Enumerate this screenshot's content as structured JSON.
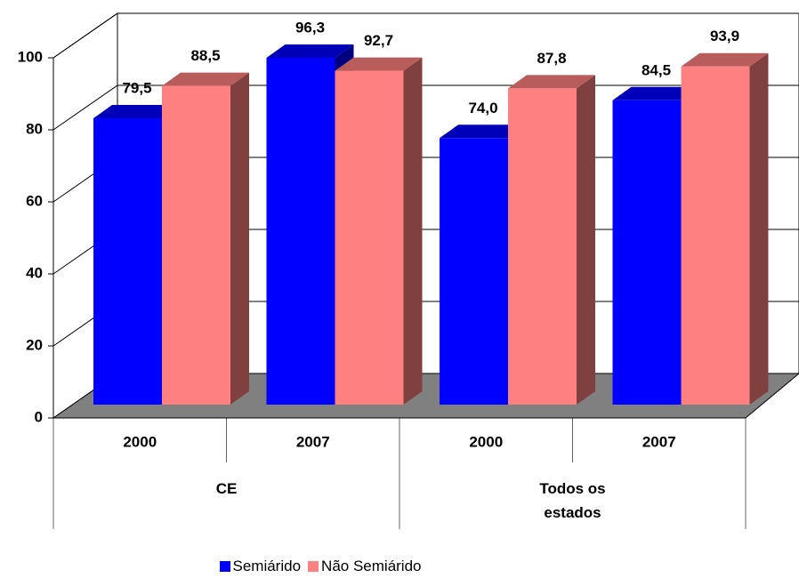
{
  "chart_data": {
    "type": "bar3d",
    "categories": [
      "2000",
      "2007",
      "2000",
      "2007"
    ],
    "groups": [
      "CE",
      "Todos os estados"
    ],
    "series": [
      {
        "name": "Semiárido",
        "color": "#0000ff",
        "values": [
          79.5,
          96.3,
          74.0,
          84.5
        ],
        "value_labels": [
          "79,5",
          "96,3",
          "74,0",
          "84,5"
        ]
      },
      {
        "name": "Não Semiárido",
        "color": "#ff8080",
        "values": [
          88.5,
          92.7,
          87.8,
          93.9
        ],
        "value_labels": [
          "88,5",
          "92,7",
          "87,8",
          "93,9"
        ]
      }
    ],
    "ylim": [
      0,
      100
    ],
    "yticks": [
      0,
      20,
      40,
      60,
      80,
      100
    ],
    "grid": true
  }
}
